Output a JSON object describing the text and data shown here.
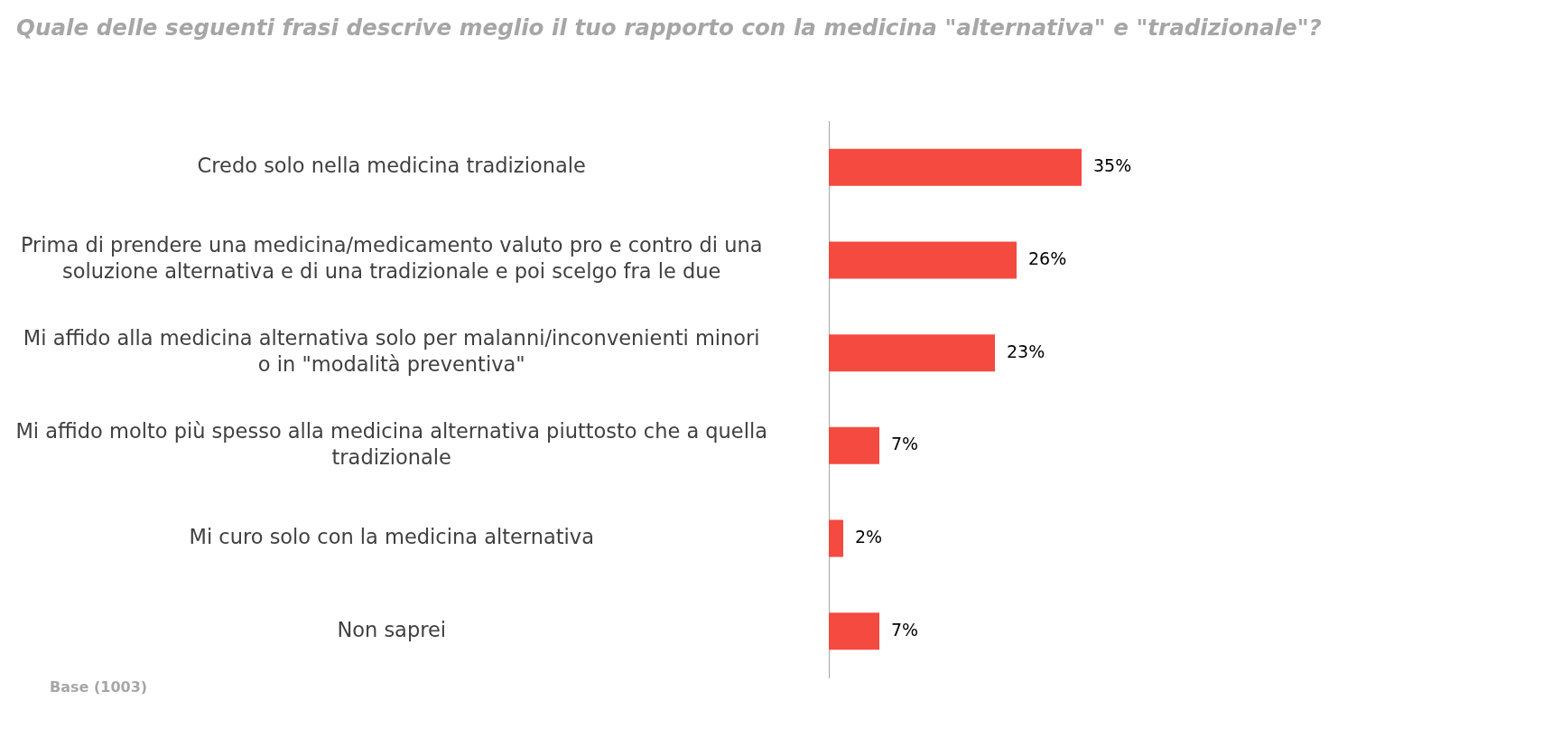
{
  "chart_data": {
    "type": "bar",
    "orientation": "horizontal",
    "title": "Quale delle seguenti frasi descrive meglio il tuo rapporto con la medicina \"alternativa\" e \"tradizionale\"?",
    "categories": [
      "Credo solo nella medicina tradizionale",
      "Prima di prendere una medicina/medicamento valuto pro e contro di una soluzione alternativa e di una tradizionale e poi scelgo fra le due",
      "Mi affido alla medicina alternativa solo per malanni/inconvenienti minori o in \"modalità preventiva\"",
      "Mi affido molto più spesso alla medicina alternativa piuttosto che a quella tradizionale",
      "Mi curo solo con la medicina alternativa",
      "Non saprei"
    ],
    "values": [
      35,
      26,
      23,
      7,
      2,
      7
    ],
    "value_labels": [
      "35%",
      "26%",
      "23%",
      "7%",
      "2%",
      "7%"
    ],
    "color": "#f44a40",
    "tick_labels": "y",
    "annotations": [
      "Base (1003)"
    ]
  }
}
